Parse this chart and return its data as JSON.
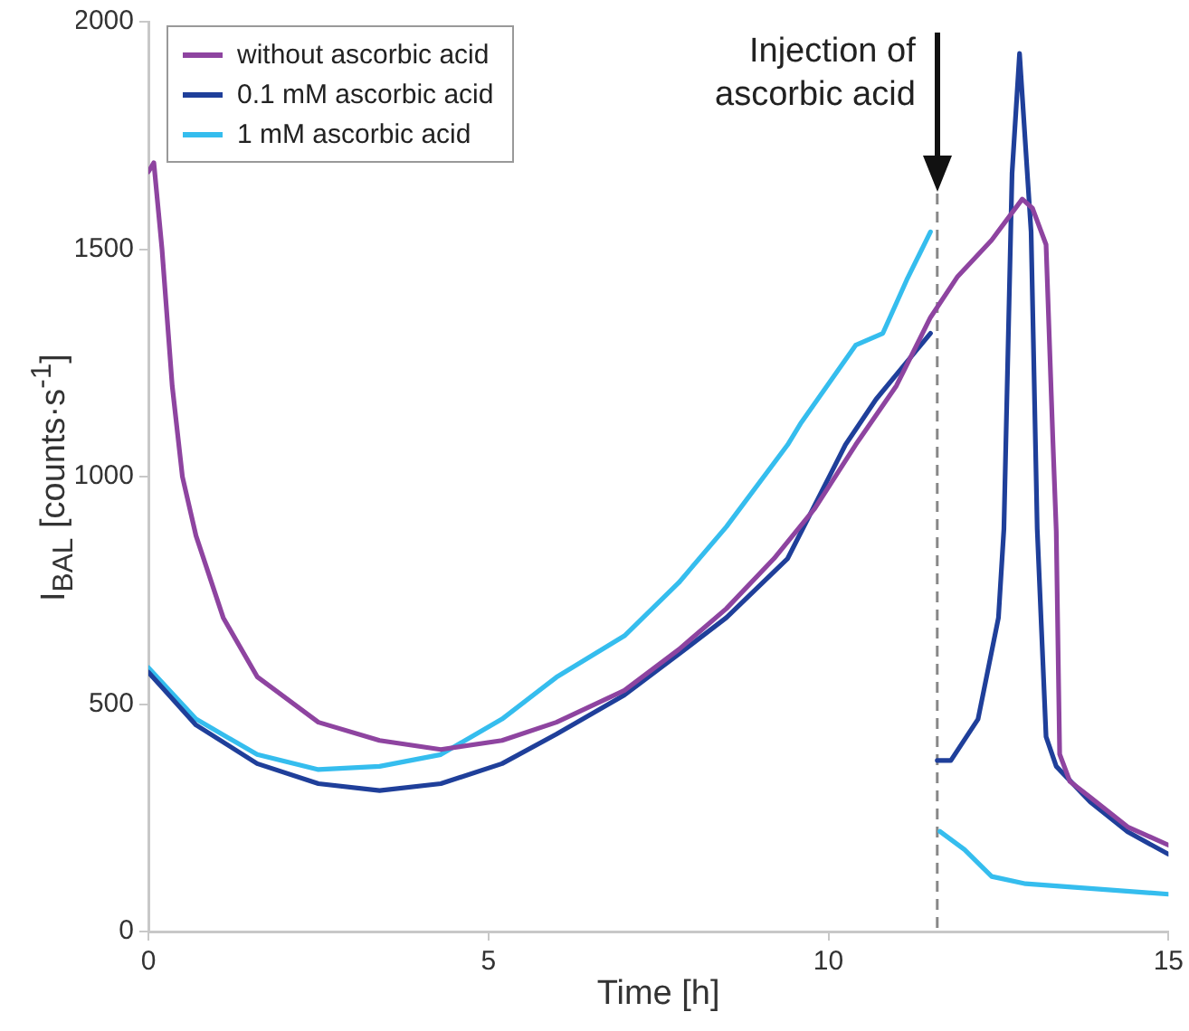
{
  "chart_data": {
    "type": "line",
    "xlabel": "Time [h]",
    "ylabel": "I$_{BAL}$ [counts·s$^{-1}$]",
    "xlim": [
      0,
      15
    ],
    "xticks": [
      0,
      5,
      10,
      15
    ],
    "ylim": [
      0,
      2000
    ],
    "yticks": [
      0,
      500,
      1000,
      1500,
      2000
    ],
    "grid": false,
    "legend": "top left",
    "marker": "none",
    "line_style": "solid",
    "ref_lines": [
      {
        "axis": "x",
        "value": 11.6,
        "label": "Injection of ascorbic acid",
        "color": "#888888",
        "line_style": "dashed"
      }
    ],
    "series": [
      {
        "name": "without ascorbic acid",
        "color": "#8e44a0",
        "x": [
          0,
          0.08,
          0.2,
          0.35,
          0.5,
          0.7,
          1.1,
          1.6,
          2.5,
          3.4,
          4.3,
          5.2,
          6,
          7,
          7.8,
          8.5,
          9.2,
          9.8,
          10.4,
          11,
          11.5,
          11.9,
          12.4,
          12.85,
          13.0,
          13.2,
          13.3,
          13.35,
          13.4,
          13.55,
          13.85,
          14.4,
          15
        ],
        "values": [
          1670,
          1690,
          1500,
          1200,
          1000,
          870,
          690,
          560,
          460,
          420,
          400,
          420,
          460,
          530,
          620,
          710,
          820,
          930,
          1070,
          1200,
          1350,
          1440,
          1520,
          1610,
          1590,
          1510,
          1080,
          880,
          390,
          330,
          295,
          230,
          190
        ]
      },
      {
        "name": "0.1 mM ascorbic acid",
        "color": "#1f3f9a",
        "x": [
          0,
          0.7,
          1.6,
          2.5,
          3.4,
          4.3,
          5.2,
          6,
          7,
          7.8,
          8.5,
          9.4,
          10.25,
          10.7,
          11.5,
          11.55,
          11.6,
          11.8,
          12.2,
          12.5,
          12.58,
          12.7,
          12.81,
          12.98,
          13.07,
          13.2,
          13.35,
          13.85,
          14.4,
          15
        ],
        "values": [
          570,
          454,
          369,
          325,
          310,
          325,
          369,
          434,
          520,
          610,
          690,
          820,
          1070,
          1170,
          1315,
          null,
          376,
          376,
          467,
          690,
          885,
          1667,
          1930,
          1538,
          885,
          428,
          363,
          285,
          219,
          170
        ]
      },
      {
        "name": "1 mM ascorbic acid",
        "color": "#35bdee",
        "x": [
          0,
          0.7,
          1.6,
          2.5,
          3.4,
          4.3,
          5.2,
          6,
          7,
          7.8,
          8.5,
          9.4,
          9.6,
          10.4,
          10.8,
          11.15,
          11.5,
          11.55,
          11.64,
          12.0,
          12.4,
          12.9,
          13.8,
          15
        ],
        "values": [
          580,
          467,
          389,
          356,
          363,
          389,
          467,
          559,
          650,
          767,
          890,
          1070,
          1119,
          1289,
          1315,
          1432,
          1538,
          null,
          220,
          180,
          121,
          105,
          95,
          82
        ]
      }
    ]
  }
}
